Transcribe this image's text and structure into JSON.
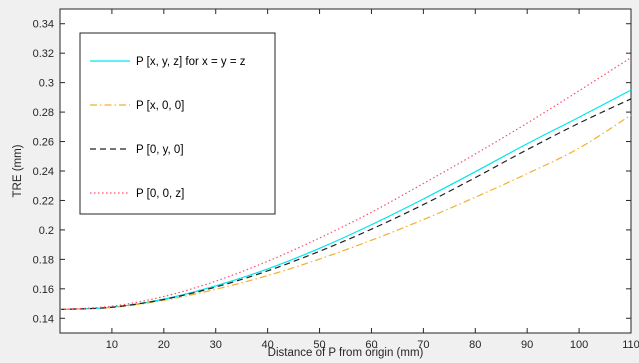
{
  "chart_data": {
    "type": "line",
    "title": "",
    "xlabel": "Distance of P from origin (mm)",
    "ylabel": "TRE (mm)",
    "xlim": [
      0,
      110
    ],
    "ylim": [
      0.13,
      0.35
    ],
    "xticks": [
      10,
      20,
      30,
      40,
      50,
      60,
      70,
      80,
      90,
      100,
      110
    ],
    "yticks": [
      0.14,
      0.16,
      0.18,
      0.2,
      0.22,
      0.24,
      0.26,
      0.28,
      0.3,
      0.32,
      0.34
    ],
    "grid": false,
    "legend_position": "top-left",
    "x": [
      0,
      10,
      20,
      30,
      40,
      50,
      60,
      70,
      80,
      90,
      100,
      110
    ],
    "series": [
      {
        "name": "P [x, y, z] for x = y = z",
        "color": "#00e5ee",
        "style": "solid",
        "values": [
          0.146,
          0.1475,
          0.153,
          0.162,
          0.1735,
          0.1875,
          0.2035,
          0.221,
          0.2395,
          0.2585,
          0.2765,
          0.295
        ]
      },
      {
        "name": "P [x, 0, 0]",
        "color": "#f0b030",
        "style": "dashdot",
        "values": [
          0.146,
          0.1473,
          0.1522,
          0.1597,
          0.169,
          0.1802,
          0.193,
          0.207,
          0.2222,
          0.2382,
          0.2555,
          0.278
        ]
      },
      {
        "name": "P [0, y, 0]",
        "color": "#202020",
        "style": "dashed",
        "values": [
          0.146,
          0.1475,
          0.1528,
          0.1612,
          0.1722,
          0.1855,
          0.2005,
          0.2172,
          0.2355,
          0.2545,
          0.2725,
          0.289
        ]
      },
      {
        "name": "P [0, 0, z]",
        "color": "#ff4d6a",
        "style": "dotted",
        "values": [
          0.146,
          0.1482,
          0.1548,
          0.1652,
          0.1787,
          0.1945,
          0.212,
          0.2315,
          0.2515,
          0.2725,
          0.2945,
          0.317
        ]
      }
    ]
  }
}
